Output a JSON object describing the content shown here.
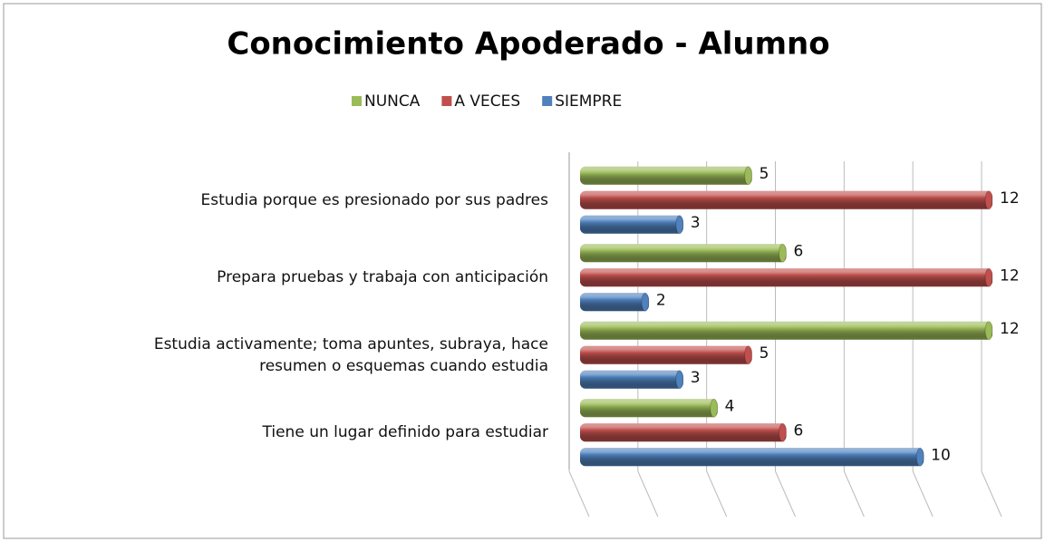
{
  "chart_data": {
    "type": "bar",
    "orientation": "horizontal",
    "title": "Conocimiento Apoderado - Alumno",
    "categories": [
      "Estudia porque es presionado por sus padres",
      "Prepara pruebas y trabaja con anticipación",
      "Estudia activamente; toma apuntes, subraya, hace\nresumen o esquemas cuando estudia",
      "Tiene un lugar definido para estudiar"
    ],
    "series": [
      {
        "name": "NUNCA",
        "color": "#9bbb59",
        "values": [
          5,
          6,
          12,
          4
        ]
      },
      {
        "name": "A VECES",
        "color": "#c0504d",
        "values": [
          12,
          12,
          5,
          6
        ]
      },
      {
        "name": "SIEMPRE",
        "color": "#4f81bd",
        "values": [
          3,
          2,
          3,
          10
        ]
      }
    ],
    "xlim": [
      0,
      12
    ],
    "xticks": [
      0,
      2,
      4,
      6,
      8,
      10,
      12
    ],
    "grid": true,
    "legend": "top"
  }
}
